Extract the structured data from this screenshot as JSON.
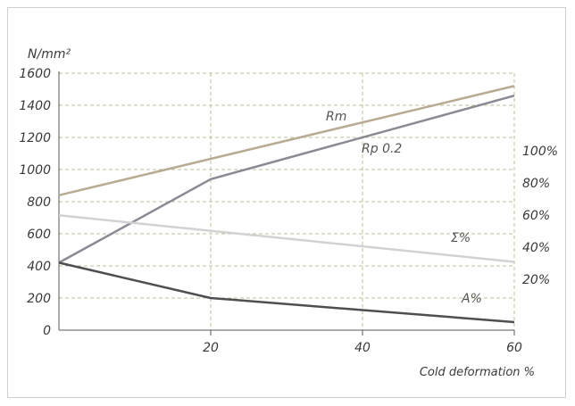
{
  "chart_data": {
    "type": "line",
    "ylabel": "N/mm²",
    "xlabel": "Cold deformation %",
    "xlim": [
      0,
      60
    ],
    "x_ticks": [
      "20",
      "40",
      "60"
    ],
    "ylim": [
      0,
      1600
    ],
    "y_ticks": [
      "0",
      "200",
      "400",
      "600",
      "800",
      "1000",
      "1200",
      "1400",
      "1600"
    ],
    "y2_ticks": [
      "20%",
      "40%",
      "60%",
      "80%",
      "100%"
    ],
    "grid": true,
    "series": [
      {
        "name": "Rm",
        "axis": "left",
        "color": "#b8ab92",
        "x": [
          0,
          60
        ],
        "y": [
          840,
          1520
        ]
      },
      {
        "name": "Rp 0.2",
        "axis": "left",
        "color": "#8a8a94",
        "x": [
          0,
          20,
          60
        ],
        "y": [
          420,
          940,
          1460
        ]
      },
      {
        "name": "Σ%",
        "axis": "left",
        "color": "#d2d2d4",
        "x": [
          0,
          60
        ],
        "y": [
          715,
          425
        ]
      },
      {
        "name": "A%",
        "axis": "left",
        "color": "#4f4f53",
        "x": [
          0,
          20,
          60
        ],
        "y": [
          420,
          200,
          50
        ]
      }
    ]
  }
}
